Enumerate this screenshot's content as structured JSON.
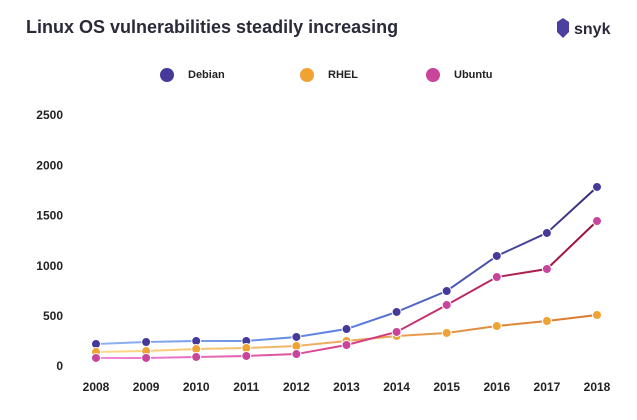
{
  "chart_data": {
    "type": "line",
    "title": "Linux OS vulnerabilities steadily increasing",
    "logo": "snyk",
    "categories": [
      "2008",
      "2009",
      "2010",
      "2011",
      "2012",
      "2013",
      "2014",
      "2015",
      "2016",
      "2017",
      "2018"
    ],
    "series": [
      {
        "name": "Debian",
        "color": "#45399a",
        "values": [
          229,
          249,
          259,
          259,
          299,
          378,
          548,
          757,
          1106,
          1335,
          1793
        ]
      },
      {
        "name": "RHEL",
        "color": "#f0a232",
        "values": [
          149,
          159,
          179,
          189,
          209,
          259,
          309,
          339,
          408,
          458,
          518
        ]
      },
      {
        "name": "Ubuntu",
        "color": "#c9449b",
        "values": [
          90,
          90,
          100,
          110,
          129,
          219,
          349,
          618,
          896,
          976,
          1454
        ]
      }
    ],
    "ylim": [
      0,
      2500
    ],
    "yticks": [
      0,
      500,
      1000,
      1500,
      2000,
      2500
    ]
  }
}
